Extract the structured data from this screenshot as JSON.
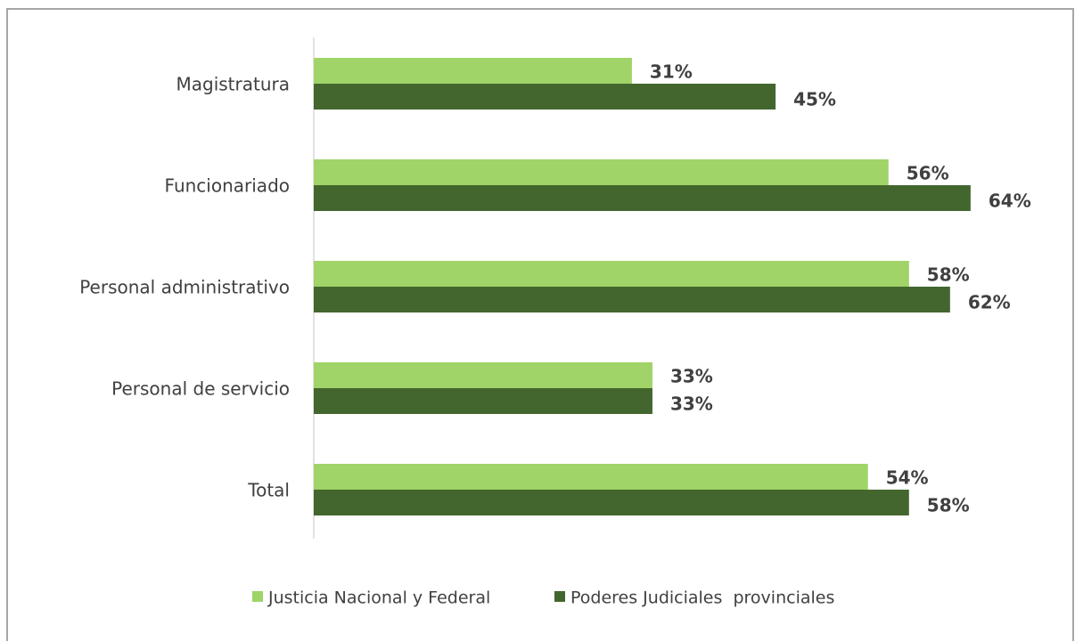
{
  "chart_data": {
    "type": "hbar",
    "categories": [
      "Magistratura",
      "Funcionariado",
      "Personal administrativo",
      "Personal de servicio",
      "Total"
    ],
    "series": [
      {
        "name": "Justicia Nacional y Federal",
        "color": "#a0d468",
        "values": [
          31,
          56,
          58,
          33,
          54
        ],
        "value_labels": [
          "31%",
          "56%",
          "58%",
          "33%",
          "54%"
        ]
      },
      {
        "name": "Poderes Judiciales  provinciales",
        "color": "#43662e",
        "values": [
          45,
          64,
          62,
          33,
          58
        ],
        "value_labels": [
          "45%",
          "64%",
          "62%",
          "33%",
          "58%"
        ]
      }
    ],
    "xlim": [
      0,
      74
    ],
    "legend": "bottom"
  }
}
